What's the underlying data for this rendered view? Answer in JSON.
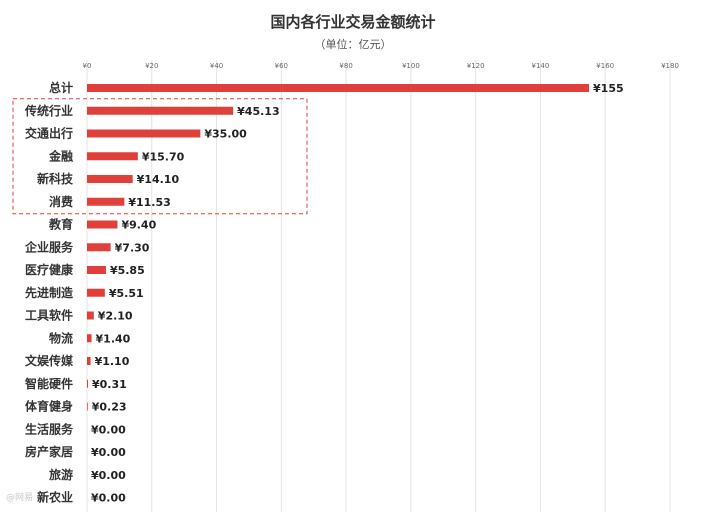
{
  "chart_data": {
    "type": "bar",
    "orientation": "horizontal",
    "title": "国内各行业交易金额统计",
    "subtitle": "（单位：亿元）",
    "xlim": [
      0,
      180
    ],
    "xticks": [
      "¥0",
      "¥20",
      "¥40",
      "¥60",
      "¥80",
      "¥100",
      "¥120",
      "¥140",
      "¥160",
      "¥180"
    ],
    "grid": true,
    "bar_color": "#e0403a",
    "highlight_box_color": "#e0403a",
    "highlighted_categories": [
      "传统行业",
      "交通出行",
      "金融",
      "新科技",
      "消费"
    ],
    "categories": [
      "总计",
      "传统行业",
      "交通出行",
      "金融",
      "新科技",
      "消费",
      "教育",
      "企业服务",
      "医疗健康",
      "先进制造",
      "工具软件",
      "物流",
      "文娱传媒",
      "智能硬件",
      "体育健身",
      "生活服务",
      "房产家居",
      "旅游",
      "新农业"
    ],
    "values": [
      155,
      45.13,
      35.0,
      15.7,
      14.1,
      11.53,
      9.4,
      7.3,
      5.85,
      5.51,
      2.1,
      1.4,
      1.1,
      0.31,
      0.23,
      0.0,
      0.0,
      0.0,
      0.0
    ],
    "value_labels": [
      "¥155",
      "¥45.13",
      "¥35.00",
      "¥15.70",
      "¥14.10",
      "¥11.53",
      "¥9.40",
      "¥7.30",
      "¥5.85",
      "¥5.51",
      "¥2.10",
      "¥1.40",
      "¥1.10",
      "¥0.31",
      "¥0.23",
      "¥0.00",
      "¥0.00",
      "¥0.00",
      "¥0.00"
    ]
  },
  "watermark": "@网易"
}
